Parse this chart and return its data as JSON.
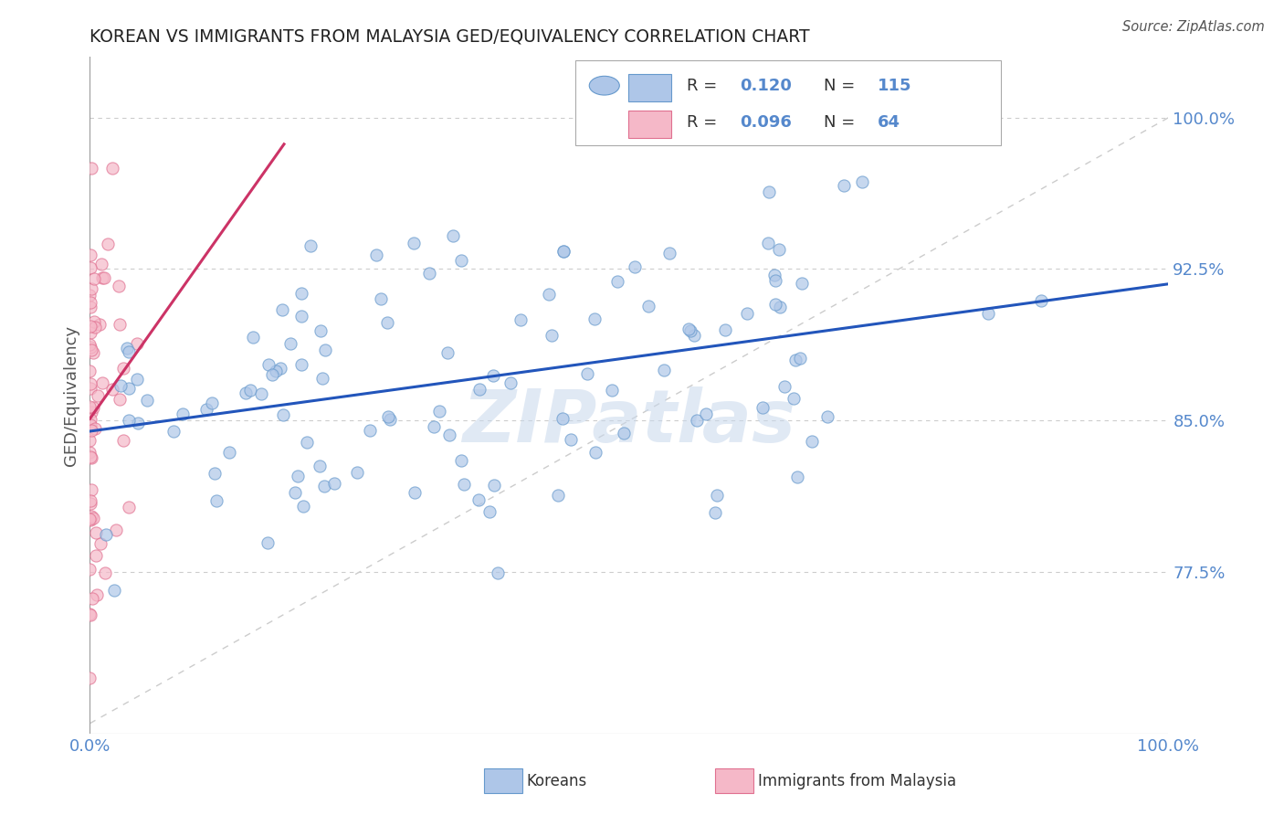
{
  "title": "KOREAN VS IMMIGRANTS FROM MALAYSIA GED/EQUIVALENCY CORRELATION CHART",
  "source_text": "Source: ZipAtlas.com",
  "ylabel": "GED/Equivalency",
  "watermark": "ZIPatlas",
  "xlim": [
    0.0,
    1.0
  ],
  "ylim": [
    0.7,
    1.03
  ],
  "yticks": [
    0.775,
    0.85,
    0.925,
    1.0
  ],
  "ytick_labels": [
    "77.5%",
    "85.0%",
    "92.5%",
    "100.0%"
  ],
  "xticks": [
    0.0,
    1.0
  ],
  "xtick_labels": [
    "0.0%",
    "100.0%"
  ],
  "korean_color": "#aec6e8",
  "malaysia_color": "#f5b8c8",
  "korean_edge": "#6699cc",
  "malaysia_edge": "#e07090",
  "trend_blue": "#2255bb",
  "trend_pink": "#cc3366",
  "R_korean": 0.12,
  "N_korean": 115,
  "R_malaysia": 0.096,
  "N_malaysia": 64,
  "legend_label_korean": "Koreans",
  "legend_label_malaysia": "Immigrants from Malaysia",
  "grid_color": "#cccccc",
  "background_color": "#ffffff",
  "title_color": "#222222",
  "axis_label_color": "#5588cc",
  "ref_line_color": "#cccccc"
}
